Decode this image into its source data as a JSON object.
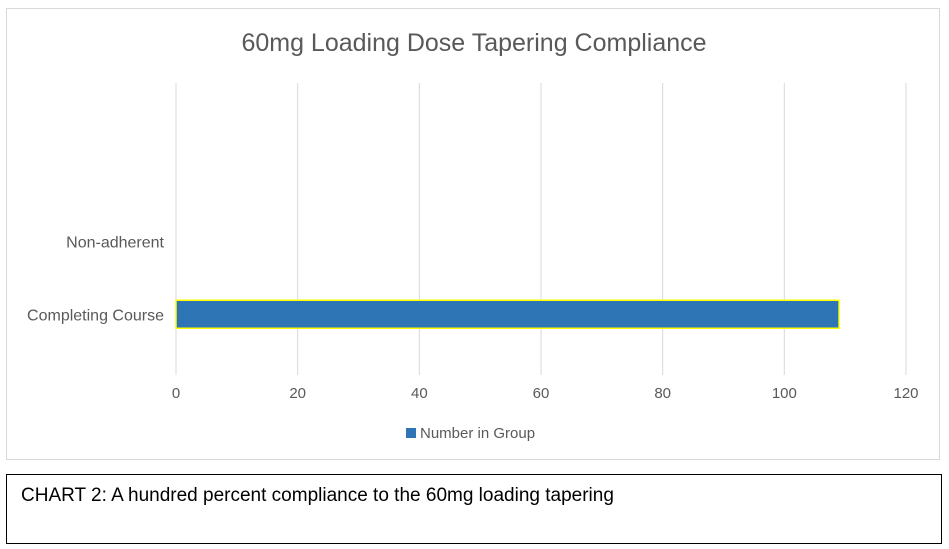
{
  "chart_data": {
    "type": "bar",
    "orientation": "horizontal",
    "title": "60mg  Loading Dose Tapering Compliance",
    "categories": [
      "Completing Course",
      "Non-adherent"
    ],
    "series": [
      {
        "name": "Number in Group",
        "values": [
          109,
          0
        ],
        "color": "#2e75b6",
        "border_color": "#ffff00"
      }
    ],
    "xlim": [
      0,
      120
    ],
    "x_ticks": [
      0,
      20,
      40,
      60,
      80,
      100,
      120
    ],
    "grid": true,
    "gridline_color": "#d9d9d9",
    "legend_position": "bottom"
  },
  "caption": {
    "text": "CHART 2: A hundred percent compliance to the 60mg loading tapering"
  }
}
